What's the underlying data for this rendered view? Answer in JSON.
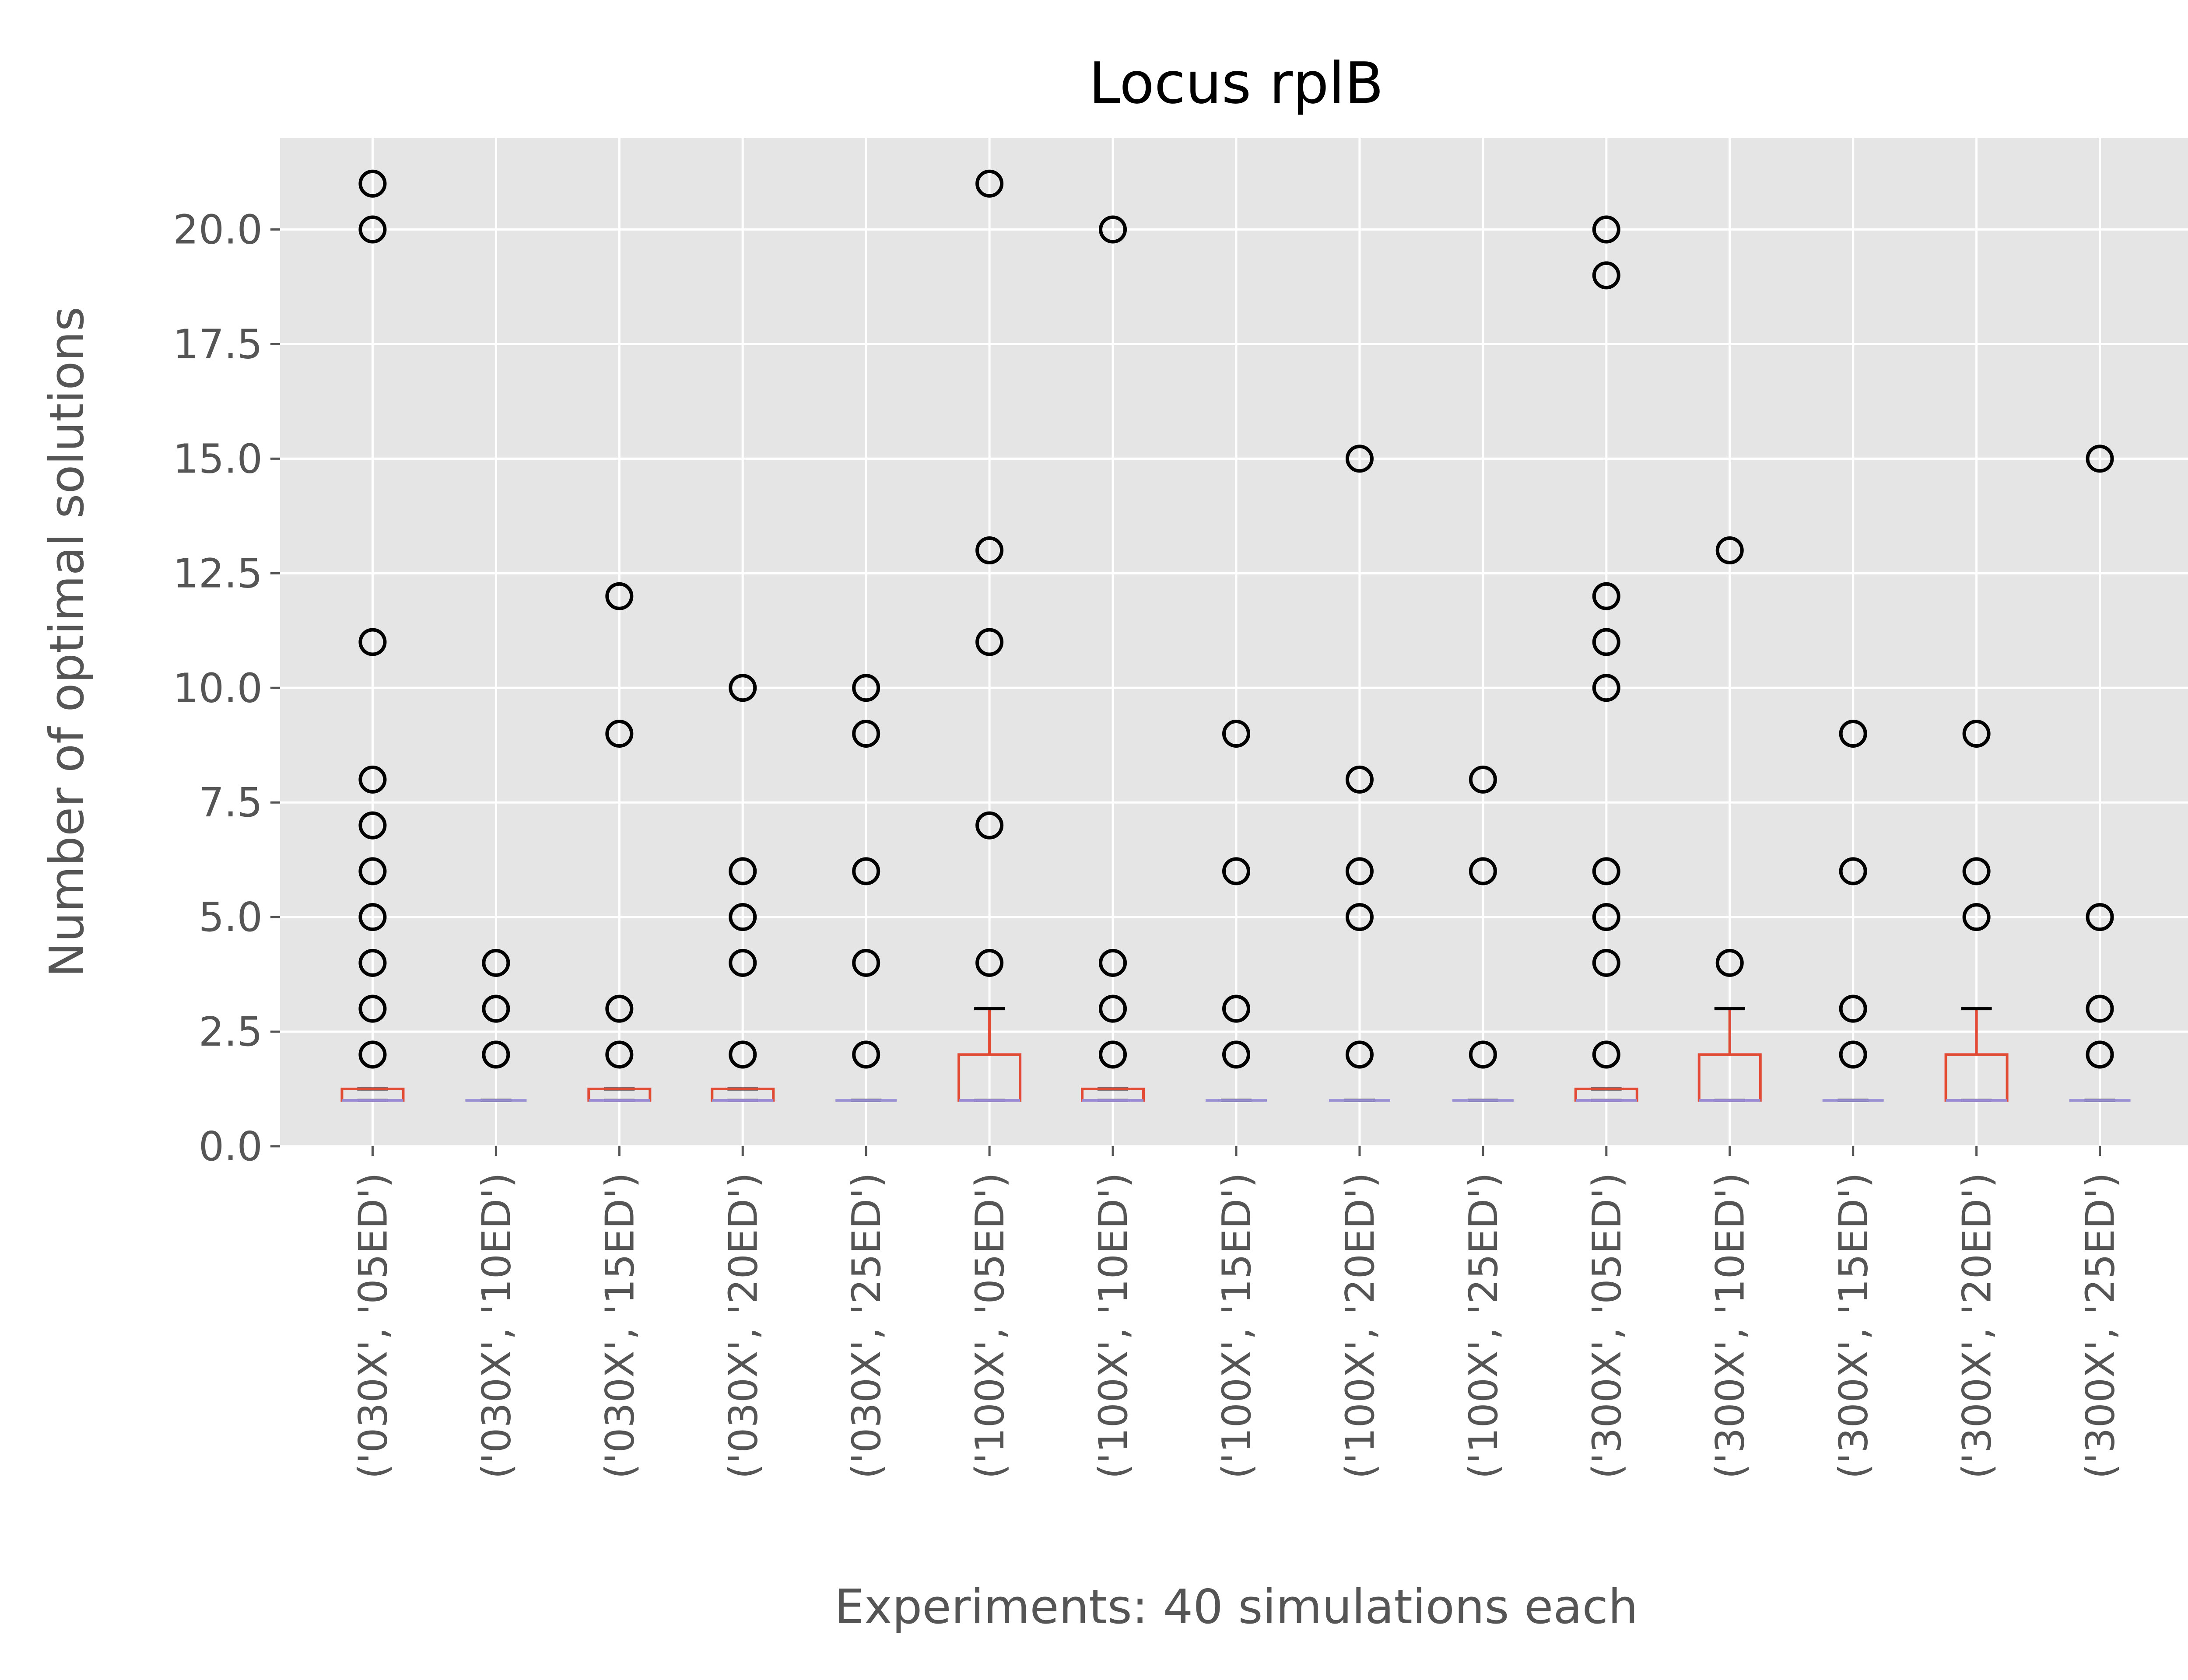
{
  "chart_data": {
    "type": "box",
    "title": "Locus rplB",
    "xlabel": "Experiments: 40 simulations each",
    "ylabel": "Number of optimal solutions",
    "ylim": [
      0,
      22
    ],
    "yticks": [
      "0.0",
      "2.5",
      "5.0",
      "7.5",
      "10.0",
      "12.5",
      "15.0",
      "17.5",
      "20.0"
    ],
    "grid": true,
    "colors": {
      "background": "#E5E5E5",
      "grid": "#FFFFFF",
      "box": "#E24A33",
      "median": "#988ED5",
      "cap": "#000000",
      "flier": "#000000"
    },
    "categories": [
      "('030X', '05ED')",
      "('030X', '10ED')",
      "('030X', '15ED')",
      "('030X', '20ED')",
      "('030X', '25ED')",
      "('100X', '05ED')",
      "('100X', '10ED')",
      "('100X', '15ED')",
      "('100X', '20ED')",
      "('100X', '25ED')",
      "('300X', '05ED')",
      "('300X', '10ED')",
      "('300X', '15ED')",
      "('300X', '20ED')",
      "('300X', '25ED')"
    ],
    "boxes": [
      {
        "q1": 1,
        "median": 1,
        "q3": 1.25,
        "whislo": 1,
        "whishi": 1.25,
        "fliers": [
          2,
          3,
          4,
          5,
          6,
          7,
          8,
          11,
          20,
          21
        ]
      },
      {
        "q1": 1,
        "median": 1,
        "q3": 1,
        "whislo": 1,
        "whishi": 1,
        "fliers": [
          2,
          3,
          4
        ]
      },
      {
        "q1": 1,
        "median": 1,
        "q3": 1.25,
        "whislo": 1,
        "whishi": 1.25,
        "fliers": [
          2,
          3,
          9,
          12
        ]
      },
      {
        "q1": 1,
        "median": 1,
        "q3": 1.25,
        "whislo": 1,
        "whishi": 1.25,
        "fliers": [
          2,
          4,
          5,
          6,
          10
        ]
      },
      {
        "q1": 1,
        "median": 1,
        "q3": 1,
        "whislo": 1,
        "whishi": 1,
        "fliers": [
          2,
          4,
          6,
          9,
          10
        ]
      },
      {
        "q1": 1,
        "median": 1,
        "q3": 2,
        "whislo": 1,
        "whishi": 3,
        "fliers": [
          4,
          7,
          11,
          13,
          21
        ]
      },
      {
        "q1": 1,
        "median": 1,
        "q3": 1.25,
        "whislo": 1,
        "whishi": 1.25,
        "fliers": [
          2,
          3,
          4,
          20
        ]
      },
      {
        "q1": 1,
        "median": 1,
        "q3": 1,
        "whislo": 1,
        "whishi": 1,
        "fliers": [
          2,
          3,
          6,
          9
        ]
      },
      {
        "q1": 1,
        "median": 1,
        "q3": 1,
        "whislo": 1,
        "whishi": 1,
        "fliers": [
          2,
          5,
          6,
          8,
          15
        ]
      },
      {
        "q1": 1,
        "median": 1,
        "q3": 1,
        "whislo": 1,
        "whishi": 1,
        "fliers": [
          2,
          6,
          8
        ]
      },
      {
        "q1": 1,
        "median": 1,
        "q3": 1.25,
        "whislo": 1,
        "whishi": 1.25,
        "fliers": [
          2,
          4,
          5,
          6,
          10,
          11,
          12,
          19,
          20
        ]
      },
      {
        "q1": 1,
        "median": 1,
        "q3": 2,
        "whislo": 1,
        "whishi": 3,
        "fliers": [
          4,
          13
        ]
      },
      {
        "q1": 1,
        "median": 1,
        "q3": 1,
        "whislo": 1,
        "whishi": 1,
        "fliers": [
          2,
          3,
          6,
          9
        ]
      },
      {
        "q1": 1,
        "median": 1,
        "q3": 2,
        "whislo": 1,
        "whishi": 3,
        "fliers": [
          5,
          6,
          9
        ]
      },
      {
        "q1": 1,
        "median": 1,
        "q3": 1,
        "whislo": 1,
        "whishi": 1,
        "fliers": [
          2,
          3,
          5,
          15
        ]
      }
    ]
  }
}
